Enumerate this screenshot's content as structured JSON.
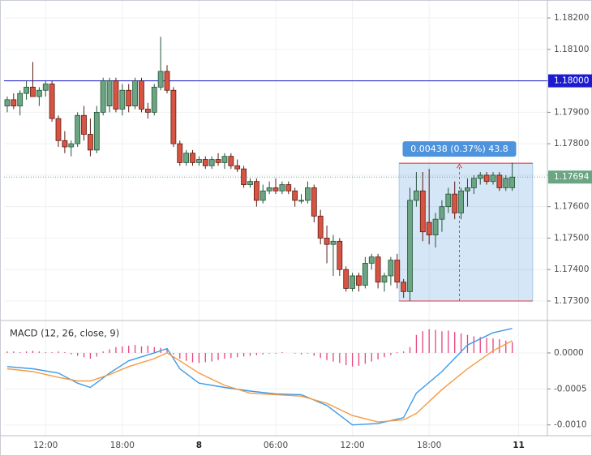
{
  "chart_data": [
    {
      "type": "candlestick",
      "xlim": [
        -0.5,
        84.5
      ],
      "ylim": [
        1.17238,
        1.18257
      ],
      "yticks": [
        {
          "value": 1.173,
          "label": "1.17300"
        },
        {
          "value": 1.174,
          "label": "1.17400"
        },
        {
          "value": 1.175,
          "label": "1.17500"
        },
        {
          "value": 1.176,
          "label": "1.17600"
        },
        {
          "value": 1.177,
          "label": "1.17700"
        },
        {
          "value": 1.178,
          "label": "1.17800"
        },
        {
          "value": 1.179,
          "label": "1.17900"
        },
        {
          "value": 1.18,
          "label": "1.18000"
        },
        {
          "value": 1.181,
          "label": "1.18100"
        },
        {
          "value": 1.182,
          "label": "1.18200"
        }
      ],
      "up_color": "#6ba583",
      "down_color": "#d75442",
      "ohlc": [
        [
          1.1792,
          1.1795,
          1.179,
          1.1794
        ],
        [
          1.1794,
          1.1796,
          1.1791,
          1.1792
        ],
        [
          1.1792,
          1.1797,
          1.1789,
          1.1796
        ],
        [
          1.1796,
          1.18,
          1.1794,
          1.1798
        ],
        [
          1.1798,
          1.1806,
          1.1795,
          1.1795
        ],
        [
          1.1795,
          1.1798,
          1.1792,
          1.1797
        ],
        [
          1.1797,
          1.18,
          1.1795,
          1.1799
        ],
        [
          1.1799,
          1.18,
          1.1787,
          1.1788
        ],
        [
          1.1788,
          1.1789,
          1.1779,
          1.1781
        ],
        [
          1.1781,
          1.1784,
          1.1777,
          1.1779
        ],
        [
          1.1779,
          1.1781,
          1.1776,
          1.178
        ],
        [
          1.178,
          1.179,
          1.1779,
          1.1789
        ],
        [
          1.1789,
          1.1792,
          1.1781,
          1.1783
        ],
        [
          1.1783,
          1.1788,
          1.1776,
          1.1778
        ],
        [
          1.1778,
          1.1792,
          1.1777,
          1.179
        ],
        [
          1.179,
          1.1801,
          1.1789,
          1.18
        ],
        [
          1.1792,
          1.1801,
          1.179,
          1.18
        ],
        [
          1.18,
          1.1801,
          1.179,
          1.1791
        ],
        [
          1.1791,
          1.1799,
          1.1789,
          1.1797
        ],
        [
          1.1797,
          1.1799,
          1.179,
          1.1792
        ],
        [
          1.1792,
          1.1801,
          1.1791,
          1.18
        ],
        [
          1.18,
          1.1801,
          1.179,
          1.1791
        ],
        [
          1.1791,
          1.1793,
          1.1788,
          1.179
        ],
        [
          1.179,
          1.1799,
          1.1789,
          1.1798
        ],
        [
          1.1798,
          1.1814,
          1.1797,
          1.1803
        ],
        [
          1.1803,
          1.1805,
          1.1796,
          1.1797
        ],
        [
          1.1797,
          1.1798,
          1.1779,
          1.178
        ],
        [
          1.178,
          1.1781,
          1.1773,
          1.1774
        ],
        [
          1.1774,
          1.1778,
          1.1773,
          1.1777
        ],
        [
          1.1777,
          1.1778,
          1.1773,
          1.1774
        ],
        [
          1.1774,
          1.1776,
          1.1773,
          1.1775
        ],
        [
          1.1775,
          1.1776,
          1.1772,
          1.1773
        ],
        [
          1.1773,
          1.1776,
          1.1772,
          1.1775
        ],
        [
          1.1775,
          1.1777,
          1.1773,
          1.1774
        ],
        [
          1.1774,
          1.1777,
          1.1772,
          1.1776
        ],
        [
          1.1776,
          1.1777,
          1.1772,
          1.1773
        ],
        [
          1.1773,
          1.1775,
          1.1771,
          1.1772
        ],
        [
          1.1772,
          1.1773,
          1.1766,
          1.1767
        ],
        [
          1.1767,
          1.1769,
          1.1766,
          1.1768
        ],
        [
          1.1768,
          1.1769,
          1.176,
          1.1762
        ],
        [
          1.1762,
          1.1767,
          1.1761,
          1.1765
        ],
        [
          1.1765,
          1.1768,
          1.1764,
          1.1766
        ],
        [
          1.1766,
          1.1769,
          1.1764,
          1.1765
        ],
        [
          1.1765,
          1.1768,
          1.1764,
          1.1767
        ],
        [
          1.1767,
          1.1768,
          1.1764,
          1.1765
        ],
        [
          1.1765,
          1.1766,
          1.176,
          1.1762
        ],
        [
          1.1762,
          1.1764,
          1.1761,
          1.1762
        ],
        [
          1.1762,
          1.1768,
          1.1761,
          1.1766
        ],
        [
          1.1766,
          1.1767,
          1.1755,
          1.1757
        ],
        [
          1.1757,
          1.1759,
          1.1748,
          1.175
        ],
        [
          1.175,
          1.1754,
          1.1742,
          1.1748
        ],
        [
          1.1748,
          1.1751,
          1.1738,
          1.1749
        ],
        [
          1.1749,
          1.175,
          1.1738,
          1.174
        ],
        [
          1.174,
          1.1741,
          1.1733,
          1.1734
        ],
        [
          1.1734,
          1.1739,
          1.1733,
          1.1738
        ],
        [
          1.1738,
          1.1739,
          1.1733,
          1.1735
        ],
        [
          1.1735,
          1.1744,
          1.1734,
          1.1742
        ],
        [
          1.1742,
          1.1745,
          1.174,
          1.1744
        ],
        [
          1.1744,
          1.1745,
          1.1734,
          1.1736
        ],
        [
          1.1736,
          1.1739,
          1.1733,
          1.1738
        ],
        [
          1.1738,
          1.1744,
          1.1735,
          1.1743
        ],
        [
          1.1743,
          1.1745,
          1.1734,
          1.1736
        ],
        [
          1.1736,
          1.1737,
          1.1731,
          1.1733
        ],
        [
          1.1733,
          1.1766,
          1.173,
          1.1762
        ],
        [
          1.1762,
          1.1771,
          1.176,
          1.1765
        ],
        [
          1.1765,
          1.1771,
          1.1749,
          1.1752
        ],
        [
          1.1755,
          1.1772,
          1.1748,
          1.1751
        ],
        [
          1.1751,
          1.1758,
          1.1747,
          1.1756
        ],
        [
          1.1756,
          1.1762,
          1.1752,
          1.176
        ],
        [
          1.176,
          1.1766,
          1.1758,
          1.1764
        ],
        [
          1.1764,
          1.1768,
          1.1756,
          1.1758
        ],
        [
          1.1758,
          1.1766,
          1.1756,
          1.1765
        ],
        [
          1.1765,
          1.1769,
          1.176,
          1.1766
        ],
        [
          1.1766,
          1.177,
          1.1764,
          1.1769
        ],
        [
          1.1769,
          1.1771,
          1.1767,
          1.177
        ],
        [
          1.177,
          1.1771,
          1.1767,
          1.1768
        ],
        [
          1.1768,
          1.1771,
          1.1767,
          1.177
        ],
        [
          1.177,
          1.1771,
          1.1765,
          1.1766
        ],
        [
          1.1766,
          1.177,
          1.1765,
          1.1769
        ],
        [
          1.1766,
          1.1774,
          1.1765,
          1.17694
        ]
      ],
      "hline": {
        "value": 1.18,
        "label": "1.18000",
        "color": "#1c1ccf"
      },
      "last_price": {
        "value": 1.17694,
        "label": "1.17694",
        "color": "#6ba583"
      },
      "measure": {
        "label": "0.00438 (0.37%) 43.8",
        "price_from": 1.173,
        "price_to": 1.17738,
        "x_from": 61.3,
        "x_to": 82.2,
        "color": "#2f80d7",
        "edge_color": "#e53935"
      }
    },
    {
      "type": "macd",
      "title": "MACD (12, 26, close, 9)",
      "xlim": [
        -0.5,
        84.5
      ],
      "xticks": [
        {
          "value": 6,
          "label": "12:00"
        },
        {
          "value": 18,
          "label": "18:00"
        },
        {
          "value": 30,
          "label": "8"
        },
        {
          "value": 42,
          "label": "06:00"
        },
        {
          "value": 54,
          "label": "12:00"
        },
        {
          "value": 66,
          "label": "18:00"
        },
        {
          "value": 80,
          "label": "11"
        }
      ],
      "ylim": [
        -0.00115,
        0.00045
      ],
      "yticks": [
        {
          "value": 0,
          "label": "0.0000"
        },
        {
          "value": -0.0005,
          "label": "-0.0005"
        },
        {
          "value": -0.001,
          "label": "-0.0010"
        }
      ],
      "x": [
        0,
        4,
        8,
        11,
        13,
        16,
        19,
        23,
        25,
        27,
        30,
        34,
        38,
        42,
        46,
        50,
        54,
        58,
        62,
        64,
        68,
        72,
        76,
        79
      ],
      "series": [
        {
          "color": "#3d9be9",
          "values": [
            -0.00019,
            -0.00022,
            -0.00028,
            -0.00042,
            -0.00048,
            -0.00028,
            -0.00011,
            0,
            6e-05,
            -0.00022,
            -0.00042,
            -0.00048,
            -0.00053,
            -0.00057,
            -0.00058,
            -0.00073,
            -0.001,
            -0.00098,
            -0.0009,
            -0.00056,
            -0.00026,
            0.00011,
            0.00028,
            0.00034
          ]
        },
        {
          "color": "#f59a42",
          "values": [
            -0.00022,
            -0.00026,
            -0.00034,
            -0.00039,
            -0.00039,
            -0.0003,
            -0.00019,
            -8e-05,
            0,
            -0.00011,
            -0.00028,
            -0.00045,
            -0.00056,
            -0.00058,
            -0.0006,
            -0.0007,
            -0.00087,
            -0.00096,
            -0.00093,
            -0.00084,
            -0.00051,
            -0.00022,
            3e-05,
            0.00017
          ]
        }
      ],
      "histogram": {
        "color": "#e8427c",
        "values": [
          2e-05,
          2e-05,
          1e-05,
          2e-05,
          3e-05,
          2e-05,
          1e-05,
          1e-05,
          2e-05,
          1e-05,
          -2e-05,
          -4e-05,
          -6e-05,
          -8e-05,
          -5e-05,
          2e-05,
          5e-05,
          8e-05,
          9e-05,
          0.0001,
          0.00011,
          9e-05,
          0.0001,
          8e-05,
          7e-05,
          6e-05,
          -2e-05,
          -8e-05,
          -0.00011,
          -0.00013,
          -0.00014,
          -0.00013,
          -0.00012,
          -0.0001,
          -8e-05,
          -7e-05,
          -6e-05,
          -5e-05,
          -4e-05,
          -3e-05,
          -2e-05,
          -1e-05,
          -1e-05,
          1e-05,
          0,
          -1e-05,
          -2e-05,
          -1e-05,
          -4e-05,
          -7e-05,
          -0.0001,
          -0.00012,
          -0.00014,
          -0.00017,
          -0.00019,
          -0.00018,
          -0.00015,
          -0.00012,
          -9e-05,
          -6e-05,
          -3e-05,
          1e-05,
          2e-05,
          8e-05,
          0.00025,
          0.0003,
          0.00033,
          0.00032,
          0.0003,
          0.00031,
          0.00029,
          0.00027,
          0.00025,
          0.00023,
          0.00022,
          0.00021,
          0.0002,
          0.00019,
          0.00017,
          0.00015
        ]
      }
    }
  ]
}
